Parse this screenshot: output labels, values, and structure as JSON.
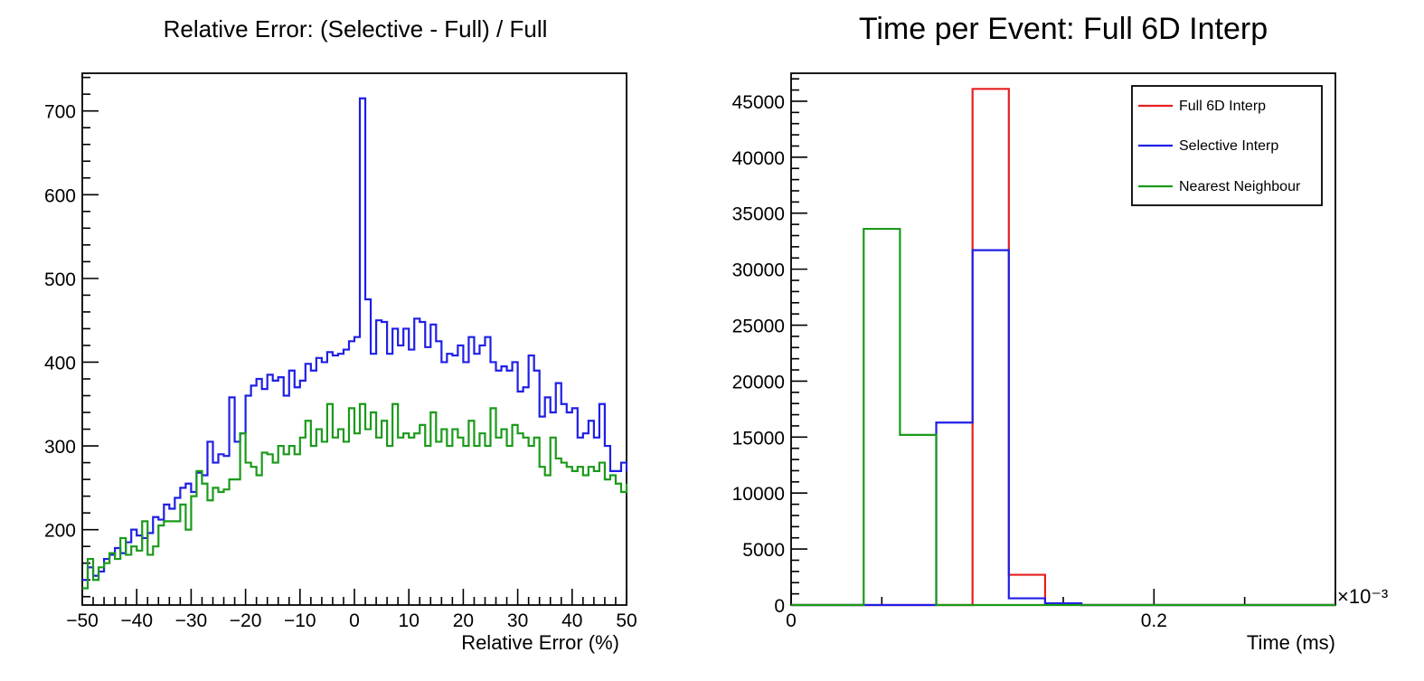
{
  "colors": {
    "blue": "#1f1fe6",
    "green": "#1a9a1a",
    "red": "#e61f1f",
    "axis": "#000000",
    "background": "#ffffff"
  },
  "chart_data": [
    {
      "type": "histogram",
      "title": "Relative Error: (Selective - Full) / Full",
      "xlabel": "Relative Error (%)",
      "ylabel": "",
      "xlim": [
        -50,
        50
      ],
      "ylim": [
        110,
        745
      ],
      "grid": false,
      "bin_width": 1,
      "x_ticks": [
        -50,
        -40,
        -30,
        -20,
        -10,
        0,
        10,
        20,
        30,
        40,
        50
      ],
      "x_tick_labels": [
        "−50",
        "−40",
        "−30",
        "−20",
        "−10",
        "0",
        "10",
        "20",
        "30",
        "40",
        "50"
      ],
      "y_ticks": [
        200,
        300,
        400,
        500,
        600,
        700
      ],
      "y_tick_labels": [
        "200",
        "300",
        "400",
        "500",
        "600",
        "700"
      ],
      "series": [
        {
          "color": "blue",
          "values": [
            140,
            155,
            145,
            150,
            165,
            170,
            178,
            172,
            185,
            200,
            193,
            190,
            196,
            215,
            212,
            230,
            225,
            238,
            250,
            255,
            245,
            268,
            265,
            305,
            280,
            290,
            288,
            358,
            305,
            315,
            360,
            372,
            380,
            368,
            385,
            378,
            382,
            360,
            390,
            370,
            378,
            398,
            390,
            405,
            400,
            412,
            408,
            410,
            415,
            425,
            430,
            715,
            475,
            410,
            450,
            448,
            410,
            440,
            420,
            440,
            415,
            452,
            448,
            418,
            445,
            425,
            400,
            410,
            408,
            420,
            400,
            430,
            410,
            420,
            430,
            400,
            390,
            395,
            390,
            400,
            365,
            370,
            408,
            390,
            335,
            358,
            340,
            375,
            350,
            340,
            345,
            310,
            315,
            330,
            310,
            350,
            300,
            270,
            270,
            280,
            270
          ]
        },
        {
          "color": "green",
          "values": [
            130,
            165,
            140,
            155,
            160,
            172,
            165,
            190,
            170,
            180,
            175,
            210,
            170,
            180,
            205,
            210,
            210,
            210,
            230,
            200,
            240,
            270,
            255,
            235,
            250,
            245,
            248,
            260,
            260,
            315,
            280,
            275,
            265,
            292,
            290,
            280,
            300,
            290,
            300,
            290,
            310,
            330,
            300,
            320,
            305,
            350,
            310,
            320,
            305,
            345,
            315,
            350,
            320,
            340,
            310,
            330,
            300,
            350,
            310,
            315,
            310,
            315,
            325,
            300,
            340,
            305,
            320,
            300,
            320,
            310,
            300,
            330,
            300,
            315,
            300,
            345,
            310,
            320,
            300,
            325,
            315,
            310,
            300,
            310,
            275,
            265,
            310,
            285,
            280,
            275,
            270,
            275,
            265,
            275,
            270,
            280,
            260,
            265,
            255,
            245,
            255
          ]
        }
      ]
    },
    {
      "type": "histogram",
      "title": "Time per Event: Full 6D Interp",
      "xlabel": "Time (ms)",
      "ylabel": "",
      "x_multiplier_label": "×10⁻³",
      "xlim": [
        0,
        0.3
      ],
      "ylim": [
        0,
        47500
      ],
      "grid": false,
      "bin_edges": [
        0,
        0.02,
        0.04,
        0.06,
        0.08,
        0.1,
        0.12,
        0.14,
        0.16,
        0.18,
        0.2,
        0.22,
        0.24,
        0.26,
        0.28,
        0.3
      ],
      "x_ticks": [
        0,
        0.2
      ],
      "x_tick_labels": [
        "0",
        "0.2"
      ],
      "y_ticks": [
        0,
        5000,
        10000,
        15000,
        20000,
        25000,
        30000,
        35000,
        40000,
        45000
      ],
      "y_tick_labels": [
        "0",
        "5000",
        "10000",
        "15000",
        "20000",
        "25000",
        "30000",
        "35000",
        "40000",
        "45000"
      ],
      "legend_position": "top-right",
      "series": [
        {
          "name": "Full 6D Interp",
          "color": "red",
          "values": [
            0,
            0,
            0,
            0,
            0,
            46100,
            2700,
            150,
            0,
            0,
            0,
            0,
            0,
            0,
            0
          ]
        },
        {
          "name": "Selective Interp",
          "color": "blue",
          "values": [
            0,
            0,
            0,
            0,
            16300,
            31700,
            600,
            150,
            0,
            0,
            0,
            0,
            0,
            0,
            0
          ]
        },
        {
          "name": "Nearest Neighbour",
          "color": "green",
          "values": [
            0,
            0,
            33600,
            15200,
            0,
            0,
            0,
            0,
            0,
            0,
            0,
            0,
            0,
            0,
            0
          ]
        }
      ]
    }
  ]
}
